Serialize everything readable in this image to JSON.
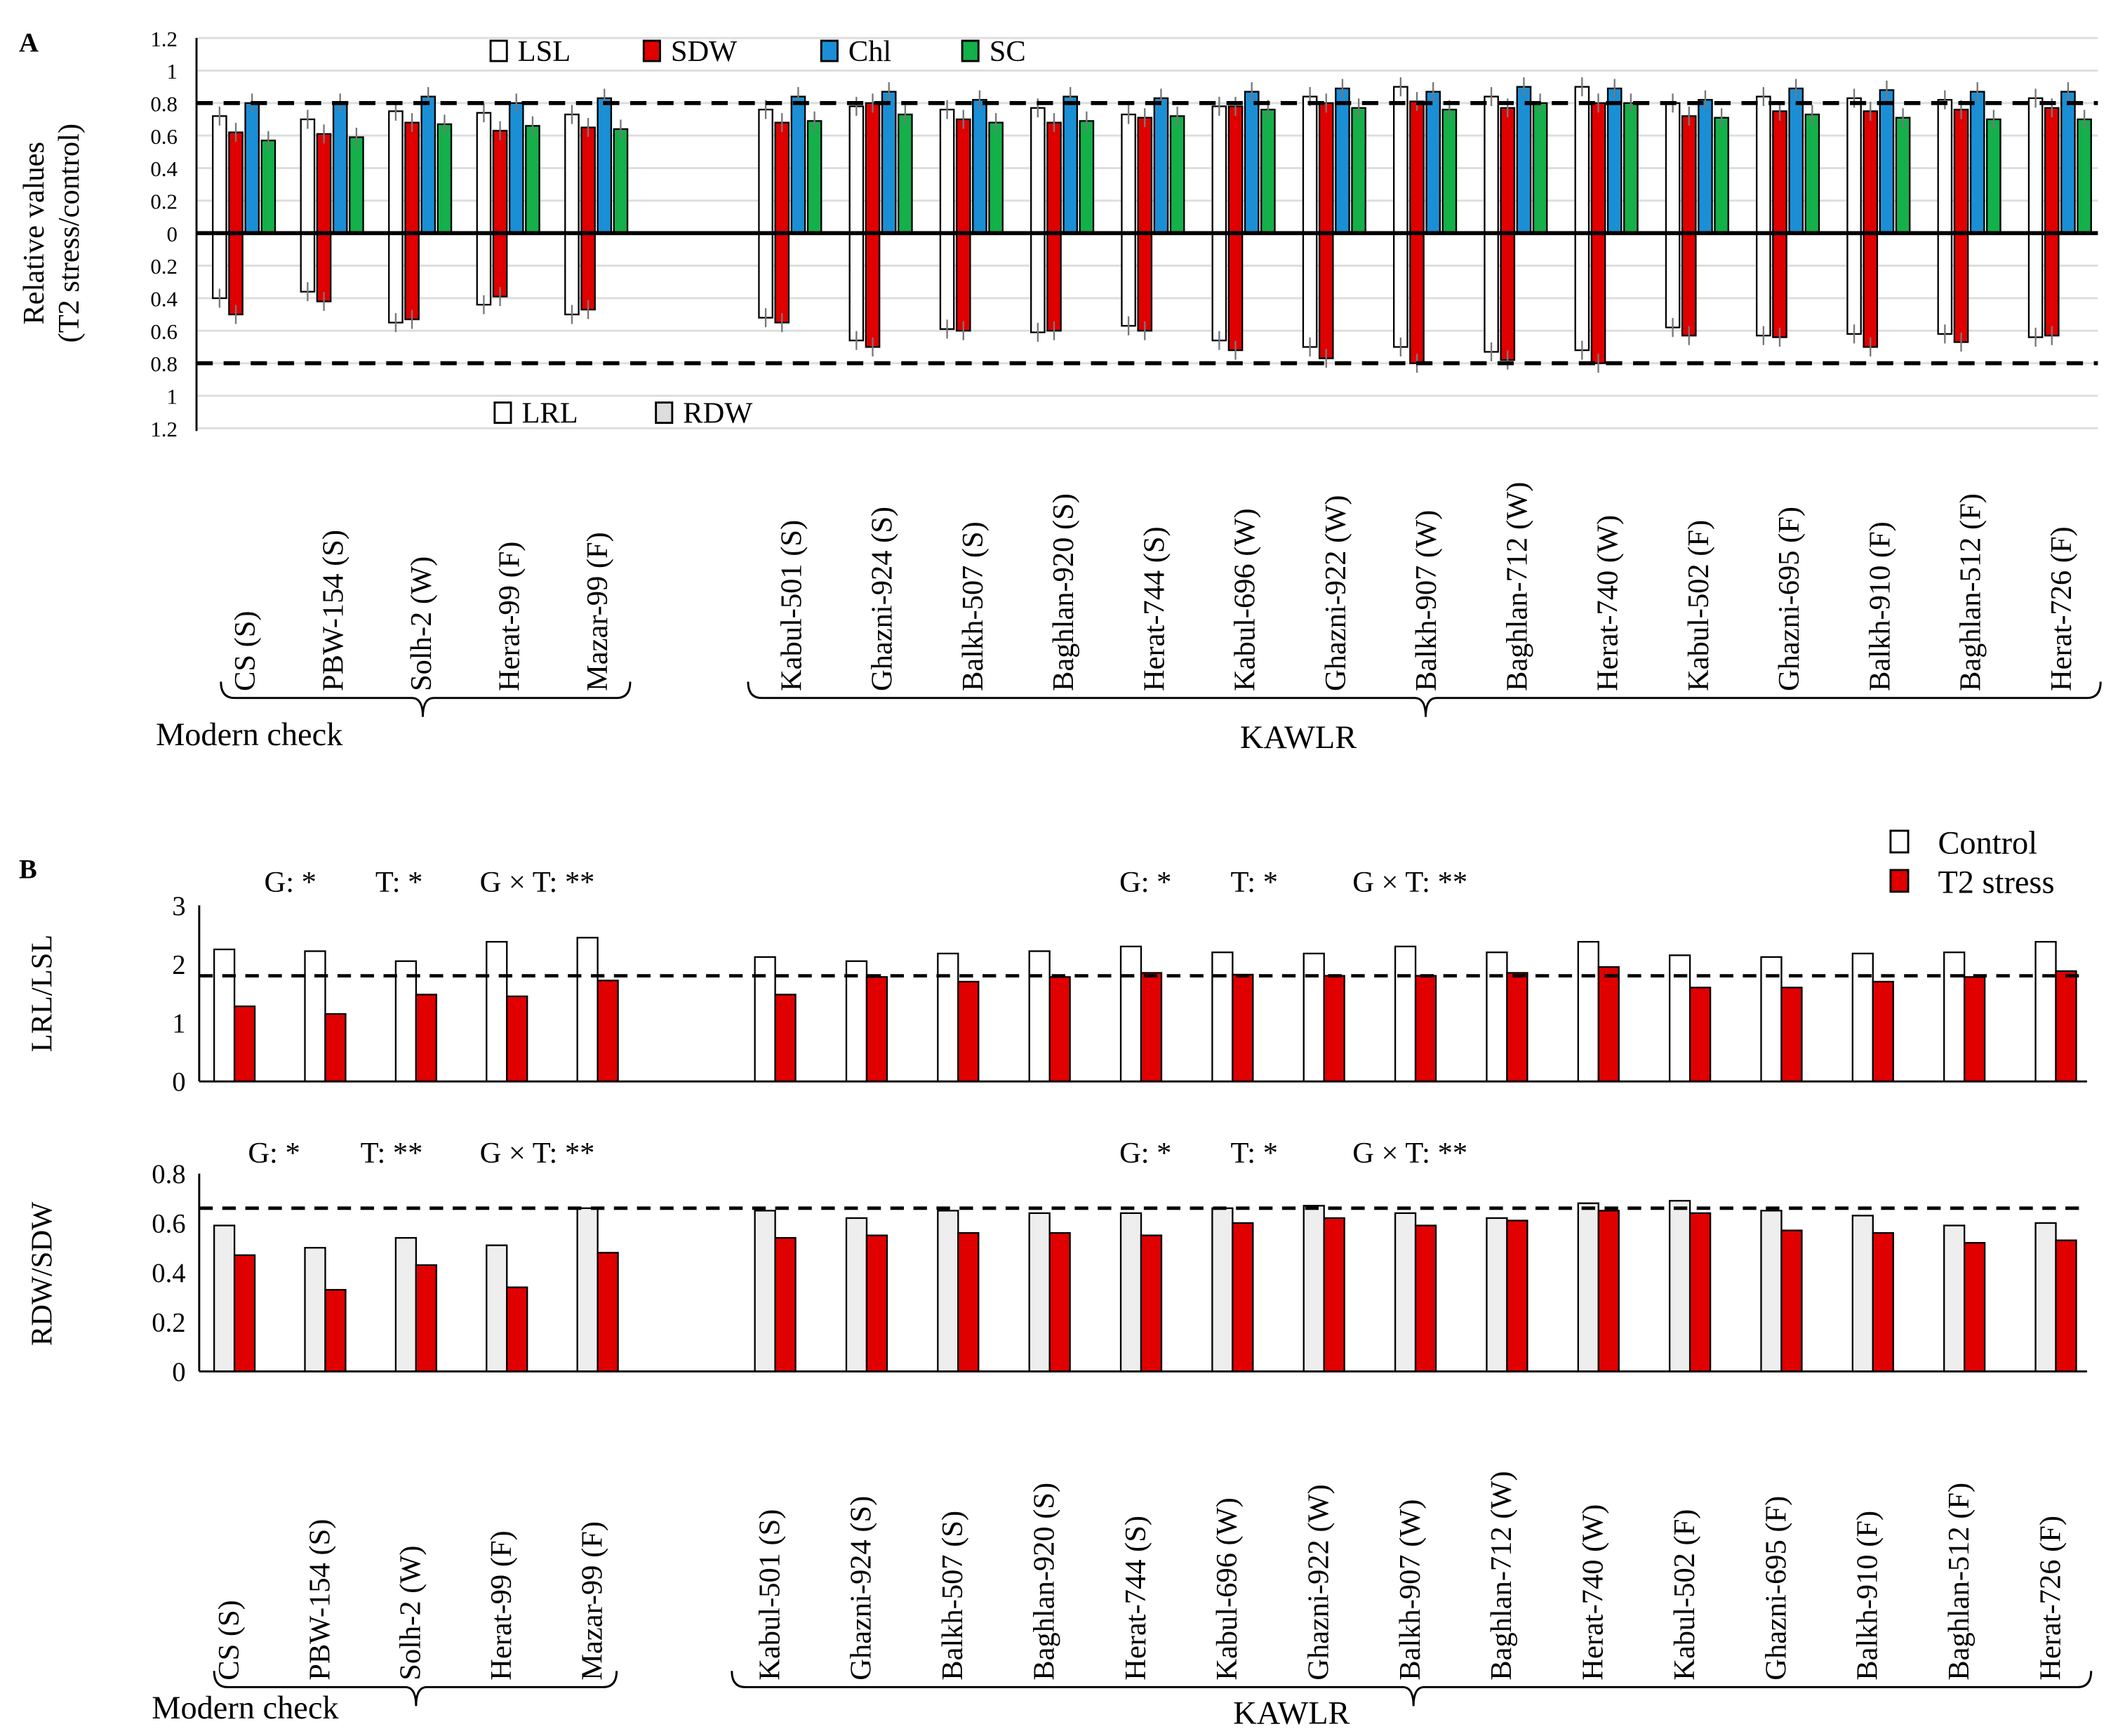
{
  "panel_labels": {
    "a": "A",
    "b": "B"
  },
  "group_labels": {
    "modern": "Modern check",
    "kawlr": "KAWLR"
  },
  "genotypes": [
    "CS (S)",
    "PBW-154 (S)",
    "Solh-2 (W)",
    "Herat-99 (F)",
    "Mazar-99 (F)",
    "Kabul-501 (S)",
    "Ghazni-924 (S)",
    "Balkh-507 (S)",
    "Baghlan-920 (S)",
    "Herat-744 (S)",
    "Kabul-696 (W)",
    "Ghazni-922 (W)",
    "Balkh-907 (W)",
    "Baghlan-712 (W)",
    "Herat-740 (W)",
    "Kabul-502 (F)",
    "Ghazni-695 (F)",
    "Balkh-910 (F)",
    "Baghlan-512 (F)",
    "Herat-726 (F)"
  ],
  "colors": {
    "LSL": "#ffffff",
    "SDW": "#e00000",
    "Chl": "#1a8fd6",
    "SC": "#14b04a",
    "LRL": "#ffffff",
    "RDW": "#e00000",
    "Control_LRL": "#ffffff",
    "Control_RDW": "#eeeeee",
    "T2": "#e00000"
  },
  "chart_data": [
    {
      "type": "bar",
      "title": "",
      "ylabel": "Relative values",
      "ylabel2": "(T2 stress/control)",
      "ylim": [
        -1.2,
        1.2
      ],
      "yticks": [
        "1.2",
        "1",
        "0.8",
        "0.6",
        "0.4",
        "0.2",
        "0",
        "0.2",
        "0.4",
        "0.6",
        "0.8",
        "1",
        "1.2"
      ],
      "reference_lines": [
        0.8,
        -0.8
      ],
      "grid": true,
      "legend_top": [
        "LSL",
        "SDW",
        "Chl",
        "SC"
      ],
      "legend_bottom": [
        "LRL",
        "RDW"
      ],
      "series_up": [
        {
          "name": "LSL",
          "values": [
            0.72,
            0.7,
            0.75,
            0.74,
            0.73,
            0.76,
            0.78,
            0.76,
            0.77,
            0.73,
            0.78,
            0.84,
            0.9,
            0.84,
            0.9,
            0.8,
            0.84,
            0.83,
            0.82,
            0.83
          ]
        },
        {
          "name": "SDW",
          "values": [
            0.62,
            0.61,
            0.68,
            0.63,
            0.65,
            0.68,
            0.8,
            0.7,
            0.68,
            0.71,
            0.78,
            0.8,
            0.81,
            0.77,
            0.8,
            0.72,
            0.75,
            0.75,
            0.76,
            0.77
          ]
        },
        {
          "name": "Chl",
          "values": [
            0.8,
            0.8,
            0.84,
            0.8,
            0.83,
            0.84,
            0.87,
            0.82,
            0.84,
            0.83,
            0.87,
            0.89,
            0.87,
            0.9,
            0.89,
            0.82,
            0.89,
            0.88,
            0.87,
            0.87
          ]
        },
        {
          "name": "SC",
          "values": [
            0.57,
            0.59,
            0.67,
            0.66,
            0.64,
            0.69,
            0.73,
            0.68,
            0.69,
            0.72,
            0.76,
            0.77,
            0.76,
            0.8,
            0.8,
            0.71,
            0.73,
            0.71,
            0.7,
            0.7
          ]
        }
      ],
      "series_down": [
        {
          "name": "LRL",
          "values": [
            0.4,
            0.36,
            0.55,
            0.44,
            0.5,
            0.52,
            0.66,
            0.59,
            0.61,
            0.57,
            0.66,
            0.7,
            0.7,
            0.73,
            0.72,
            0.58,
            0.63,
            0.62,
            0.62,
            0.64
          ]
        },
        {
          "name": "RDW",
          "values": [
            0.5,
            0.42,
            0.53,
            0.39,
            0.47,
            0.55,
            0.7,
            0.6,
            0.6,
            0.6,
            0.72,
            0.77,
            0.8,
            0.78,
            0.8,
            0.63,
            0.64,
            0.7,
            0.67,
            0.63
          ]
        }
      ]
    },
    {
      "type": "bar",
      "ylabel": "LRL/LSL",
      "ylim": [
        0,
        3
      ],
      "yticks": [
        "0",
        "1",
        "2",
        "3"
      ],
      "reference_line": 1.8,
      "legend": [
        "Control",
        "T2 stress"
      ],
      "legend_position": "top-right",
      "annotations": [
        "G: *",
        "T: *",
        "G × T: **",
        "G: *",
        "T: *",
        "G × T: **"
      ],
      "series": [
        {
          "name": "Control",
          "values": [
            2.25,
            2.22,
            2.05,
            2.38,
            2.45,
            2.12,
            2.05,
            2.18,
            2.22,
            2.3,
            2.2,
            2.18,
            2.3,
            2.2,
            2.38,
            2.15,
            2.12,
            2.18,
            2.2,
            2.38
          ]
        },
        {
          "name": "T2 stress",
          "values": [
            1.28,
            1.15,
            1.48,
            1.45,
            1.72,
            1.48,
            1.78,
            1.7,
            1.78,
            1.85,
            1.82,
            1.8,
            1.8,
            1.85,
            1.95,
            1.6,
            1.6,
            1.7,
            1.78,
            1.88
          ]
        }
      ]
    },
    {
      "type": "bar",
      "ylabel": "RDW/SDW",
      "ylim": [
        0,
        0.8
      ],
      "yticks": [
        "0",
        "0.2",
        "0.4",
        "0.6",
        "0.8"
      ],
      "reference_line": 0.66,
      "annotations": [
        "G: *",
        "T: **",
        "G × T: **",
        "G: *",
        "T: *",
        "G × T: **"
      ],
      "series": [
        {
          "name": "Control",
          "values": [
            0.59,
            0.5,
            0.54,
            0.51,
            0.66,
            0.65,
            0.62,
            0.65,
            0.64,
            0.64,
            0.66,
            0.67,
            0.64,
            0.62,
            0.68,
            0.69,
            0.65,
            0.63,
            0.59,
            0.6
          ]
        },
        {
          "name": "T2 stress",
          "values": [
            0.47,
            0.33,
            0.43,
            0.34,
            0.48,
            0.54,
            0.55,
            0.56,
            0.56,
            0.55,
            0.6,
            0.62,
            0.59,
            0.61,
            0.65,
            0.64,
            0.57,
            0.56,
            0.52,
            0.53
          ]
        }
      ]
    }
  ]
}
